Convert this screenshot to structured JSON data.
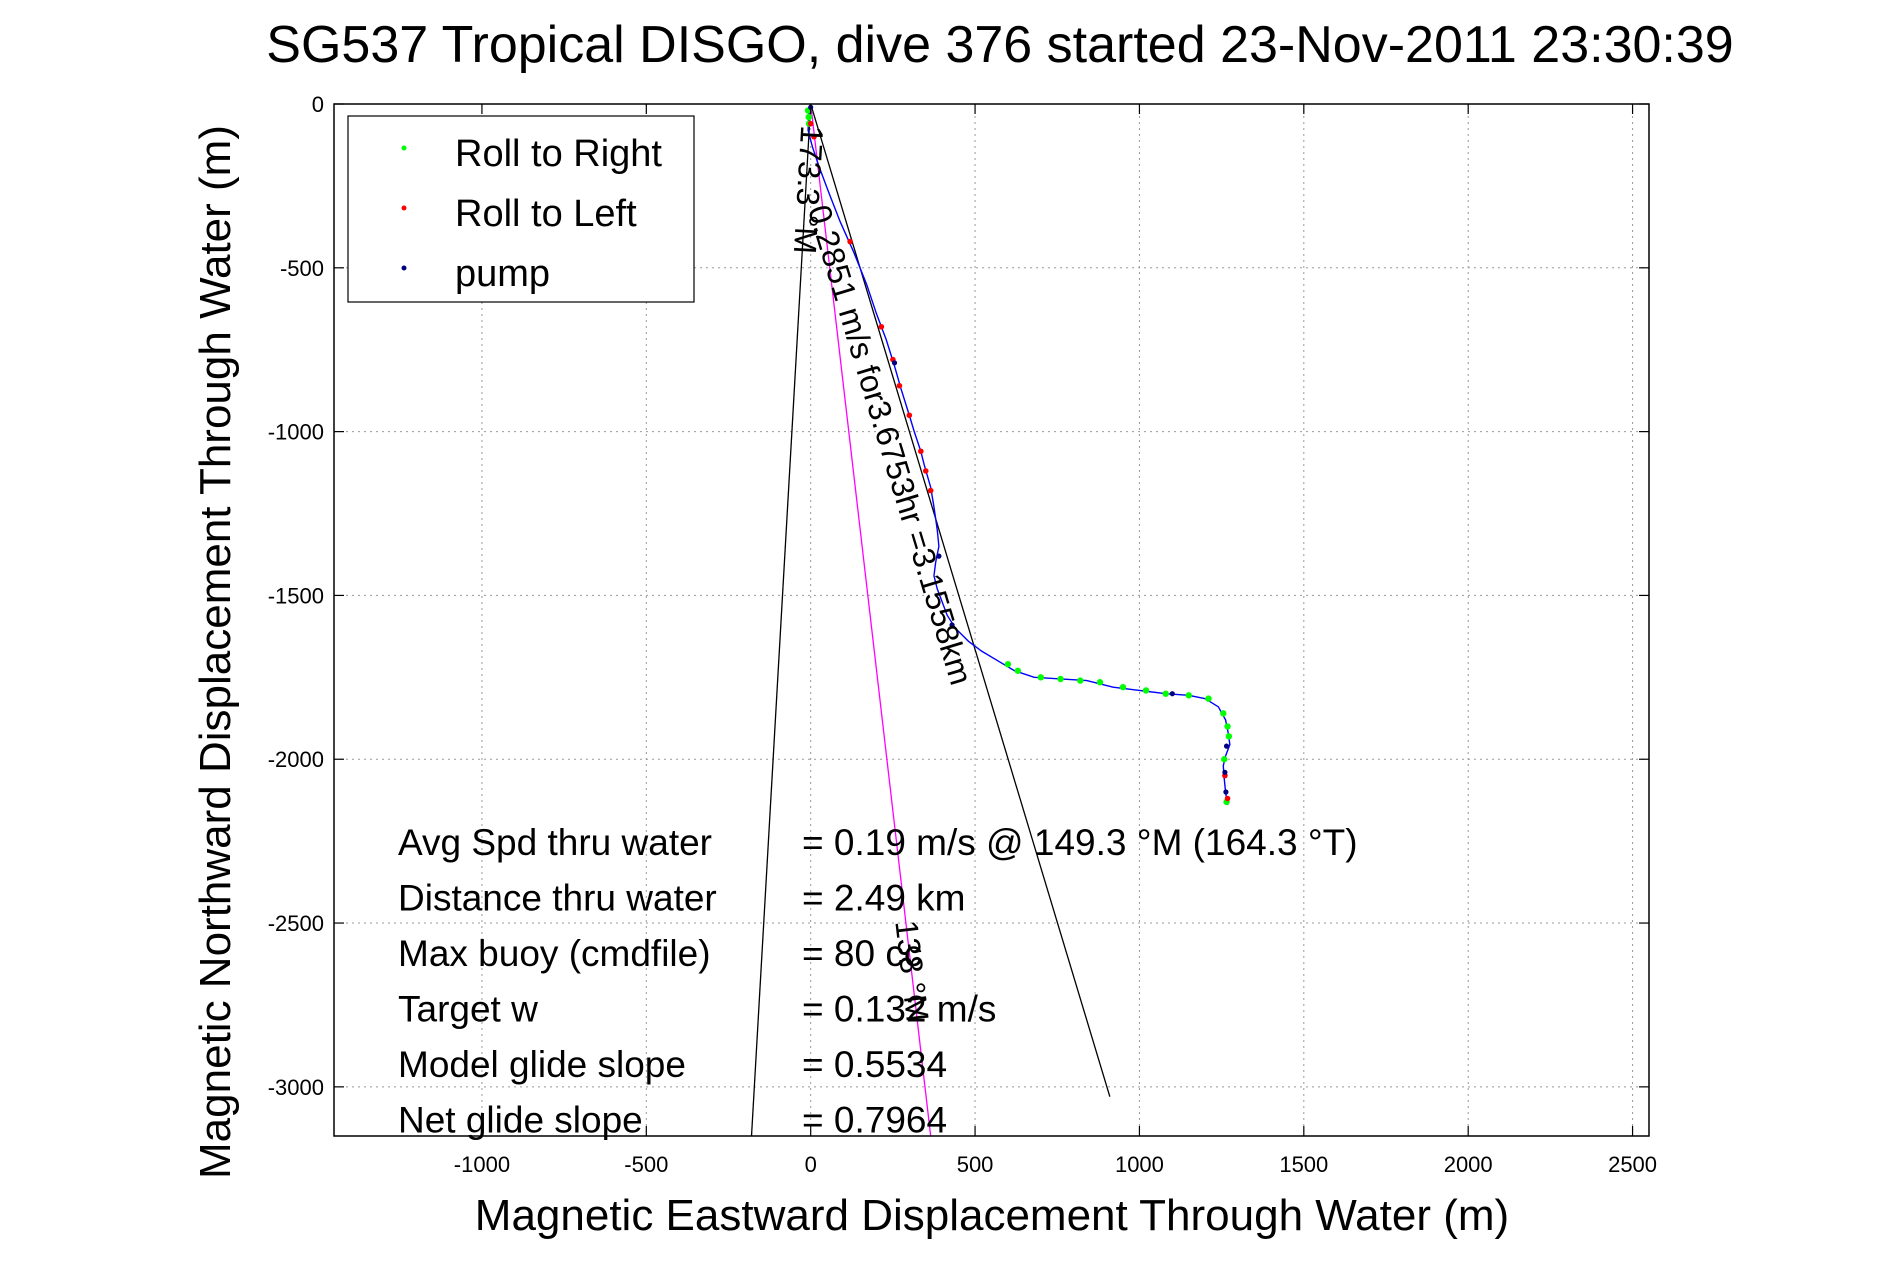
{
  "chart_data": {
    "type": "scatter",
    "title": "SG537 Tropical DISGO, dive 376 started 23-Nov-2011 23:30:39",
    "xlabel": "Magnetic Eastward Displacement Through Water (m)",
    "ylabel": "Magnetic Northward Displacement Through Water (m)",
    "xlim": [
      -1450,
      2550
    ],
    "ylim": [
      -3150,
      0
    ],
    "xticks": [
      -1000,
      -500,
      0,
      500,
      1000,
      1500,
      2000,
      2500
    ],
    "yticks": [
      0,
      -500,
      -1000,
      -1500,
      -2000,
      -2500,
      -3000
    ],
    "grid": true,
    "legend": {
      "placement": "top-left",
      "entries": [
        {
          "label": "Roll to Right",
          "color": "#00ff00"
        },
        {
          "label": "Roll to Left",
          "color": "#ff0000"
        },
        {
          "label": "pump",
          "color": "#000080"
        }
      ]
    },
    "track": {
      "color": "#0000ff",
      "points": [
        [
          0,
          0
        ],
        [
          -6,
          -30
        ],
        [
          -8,
          -80
        ],
        [
          5,
          -130
        ],
        [
          25,
          -190
        ],
        [
          55,
          -270
        ],
        [
          90,
          -360
        ],
        [
          130,
          -450
        ],
        [
          170,
          -550
        ],
        [
          200,
          -640
        ],
        [
          230,
          -720
        ],
        [
          255,
          -800
        ],
        [
          275,
          -870
        ],
        [
          300,
          -950
        ],
        [
          315,
          -1000
        ],
        [
          335,
          -1060
        ],
        [
          345,
          -1100
        ],
        [
          365,
          -1170
        ],
        [
          375,
          -1230
        ],
        [
          385,
          -1300
        ],
        [
          390,
          -1350
        ],
        [
          380,
          -1400
        ],
        [
          375,
          -1440
        ],
        [
          385,
          -1480
        ],
        [
          400,
          -1520
        ],
        [
          415,
          -1560
        ],
        [
          440,
          -1600
        ],
        [
          480,
          -1640
        ],
        [
          520,
          -1670
        ],
        [
          570,
          -1700
        ],
        [
          620,
          -1730
        ],
        [
          680,
          -1750
        ],
        [
          760,
          -1755
        ],
        [
          840,
          -1760
        ],
        [
          920,
          -1780
        ],
        [
          1000,
          -1790
        ],
        [
          1080,
          -1800
        ],
        [
          1150,
          -1805
        ],
        [
          1200,
          -1815
        ],
        [
          1240,
          -1840
        ],
        [
          1262,
          -1880
        ],
        [
          1270,
          -1920
        ],
        [
          1275,
          -1955
        ],
        [
          1262,
          -1990
        ],
        [
          1255,
          -2020
        ],
        [
          1258,
          -2060
        ],
        [
          1262,
          -2100
        ],
        [
          1268,
          -2140
        ]
      ]
    },
    "roll_right_points": [
      [
        -8,
        -20
      ],
      [
        -6,
        -40
      ],
      [
        -5,
        -60
      ],
      [
        600,
        -1710
      ],
      [
        630,
        -1730
      ],
      [
        700,
        -1750
      ],
      [
        760,
        -1755
      ],
      [
        820,
        -1760
      ],
      [
        880,
        -1765
      ],
      [
        950,
        -1780
      ],
      [
        1020,
        -1790
      ],
      [
        1080,
        -1800
      ],
      [
        1150,
        -1805
      ],
      [
        1210,
        -1815
      ],
      [
        1255,
        -1860
      ],
      [
        1268,
        -1900
      ],
      [
        1272,
        -1930
      ],
      [
        1258,
        -2000
      ],
      [
        1265,
        -2130
      ]
    ],
    "roll_left_points": [
      [
        0,
        -60
      ],
      [
        10,
        -100
      ],
      [
        120,
        -420
      ],
      [
        215,
        -680
      ],
      [
        250,
        -780
      ],
      [
        270,
        -860
      ],
      [
        300,
        -950
      ],
      [
        335,
        -1060
      ],
      [
        350,
        -1120
      ],
      [
        365,
        -1180
      ],
      [
        1260,
        -2050
      ],
      [
        1268,
        -2120
      ]
    ],
    "pump_points": [
      [
        0,
        -10
      ],
      [
        255,
        -790
      ],
      [
        390,
        -1380
      ],
      [
        430,
        -1590
      ],
      [
        1100,
        -1800
      ],
      [
        1265,
        -1960
      ],
      [
        1260,
        -2040
      ],
      [
        1263,
        -2100
      ]
    ],
    "guide_lines": [
      {
        "from": [
          0,
          0
        ],
        "to": [
          -180,
          -3150
        ]
      },
      {
        "from": [
          0,
          0
        ],
        "to": [
          910,
          -3030
        ]
      },
      {
        "from": [
          0,
          0
        ],
        "to": [
          365,
          -3150
        ],
        "color": "#ff00ff"
      }
    ],
    "line_labels": [
      {
        "text": "173.3 °M",
        "at": [
          -40,
          -260
        ]
      },
      {
        "text": "0.2851 m/s for3.6753hr =3.1558km",
        "at": [
          210,
          -1050
        ]
      },
      {
        "text": "138 °M",
        "at": [
          275,
          -2650
        ]
      }
    ],
    "stats": [
      {
        "label": "Avg Spd thru water",
        "value": "=  0.19 m/s @ 149.3 °M (164.3 °T)"
      },
      {
        "label": "Distance thru water",
        "value": "=  2.49 km"
      },
      {
        "label": "Max buoy (cmdfile)",
        "value": "= 80 cc"
      },
      {
        "label": "Target w",
        "value": "= 0.132 m/s"
      },
      {
        "label": "Model glide slope",
        "value": "= 0.5534"
      },
      {
        "label": "Net glide slope",
        "value": "= 0.7964"
      }
    ]
  }
}
